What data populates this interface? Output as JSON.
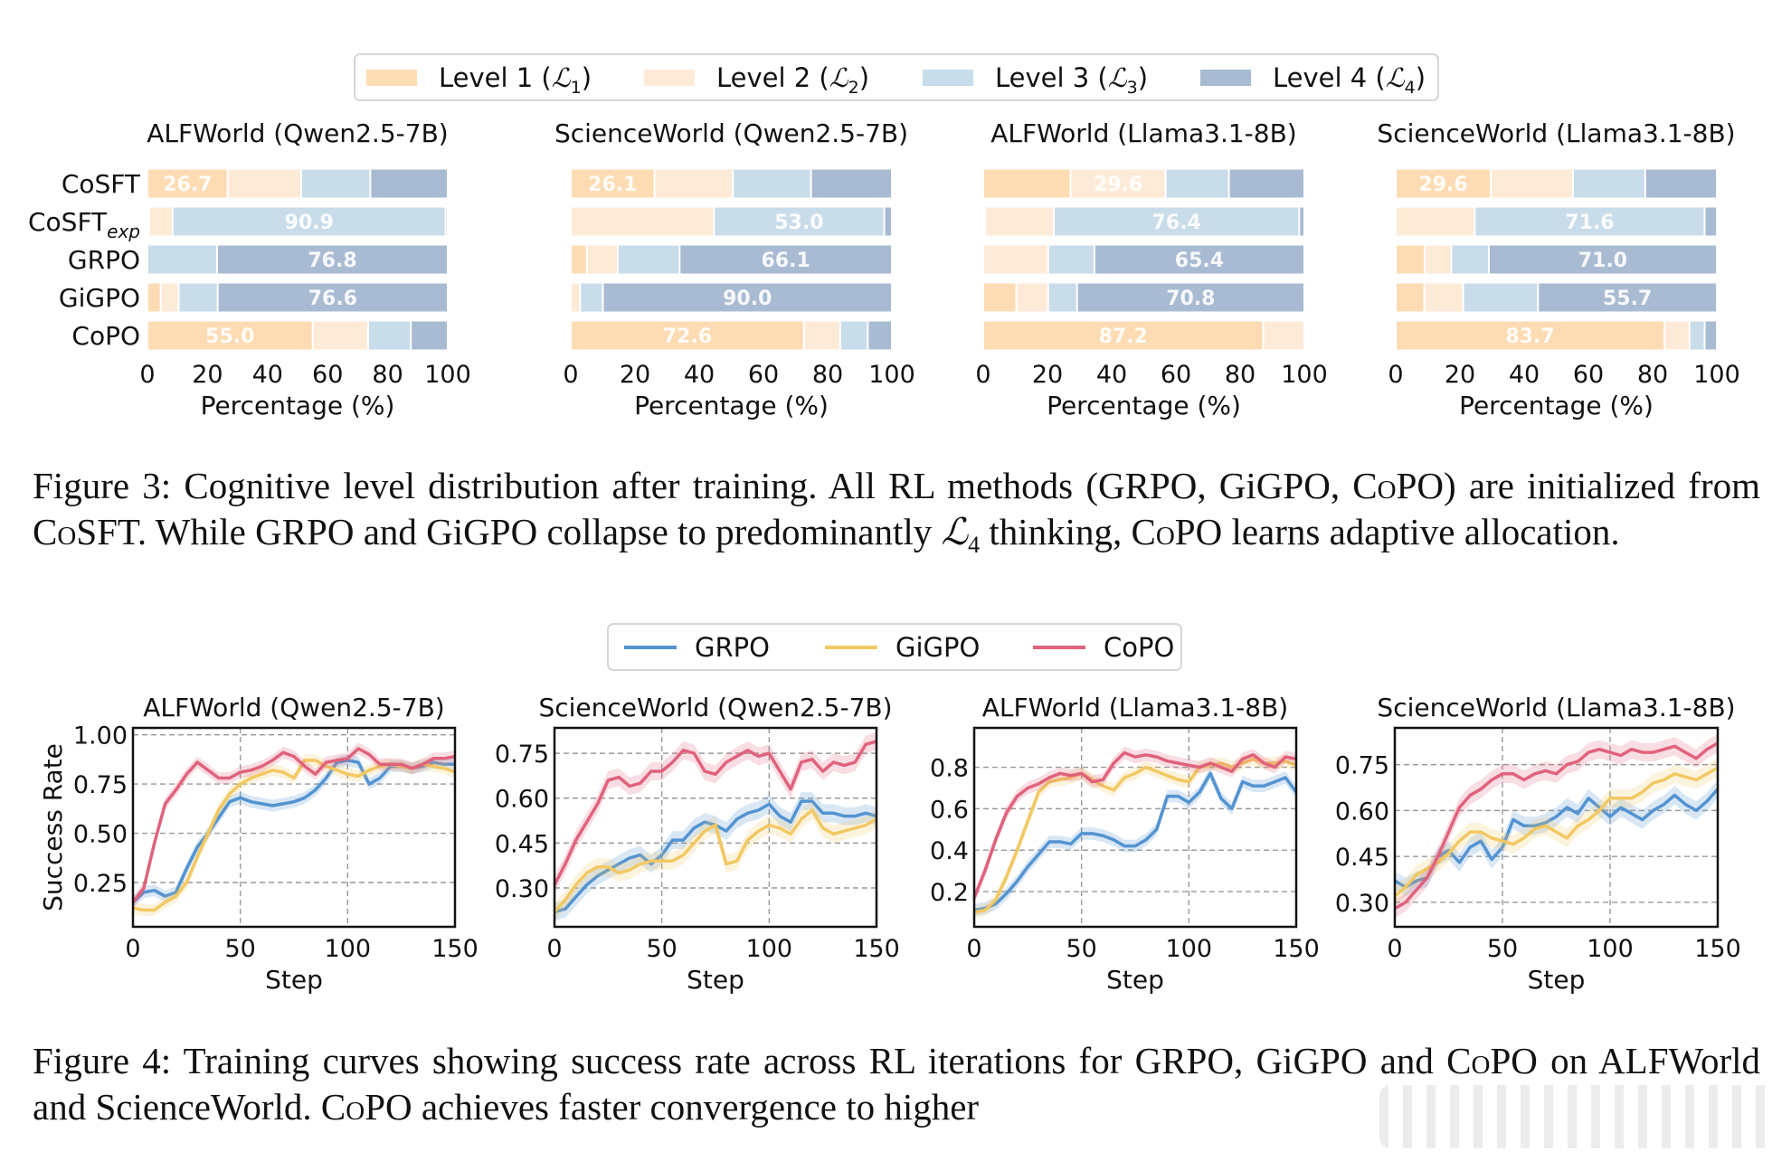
{
  "legend_levels": {
    "items": [
      {
        "label": "Level 1 (",
        "sym": "ℒ",
        "sub": "1",
        "close": ")",
        "color": "#fddcb4"
      },
      {
        "label": "Level 2 (",
        "sym": "ℒ",
        "sub": "2",
        "close": ")",
        "color": "#fdebd8"
      },
      {
        "label": "Level 3 (",
        "sym": "ℒ",
        "sub": "3",
        "close": ")",
        "color": "#c9dcea"
      },
      {
        "label": "Level 4 (",
        "sym": "ℒ",
        "sub": "4",
        "close": ")",
        "color": "#a9bbd3"
      }
    ]
  },
  "legend_methods": {
    "items": [
      {
        "label": "GRPO",
        "color": "#5393d1"
      },
      {
        "label": "GiGPO",
        "color": "#f2c862"
      },
      {
        "label": "CoPO",
        "color": "#e0627c"
      }
    ]
  },
  "captions": {
    "figure3": {
      "prefix": "Figure 3: Cognitive level distribution after training.  All RL methods (GRPO, GiGPO, C",
      "sc1": "o",
      "mid1": "PO) are initialized from C",
      "sc2": "o",
      "mid2": "SFT. While GRPO and GiGPO collapse to predominantly ",
      "sym": "ℒ",
      "sub": "4",
      "mid3": " thinking, C",
      "sc3": "o",
      "suffix": "PO learns adaptive allocation."
    },
    "figure4": {
      "prefix": "Figure 4: Training curves showing success rate across RL iterations for GRPO, GiGPO and C",
      "sc1": "o",
      "mid1": "PO on ALFWorld and ScienceWorld. C",
      "sc2": "o",
      "suffix": "PO achieves faster convergence to higher"
    }
  },
  "chart_data": [
    {
      "type": "bar",
      "stacked": true,
      "orientation": "horizontal",
      "title": "ALFWorld (Qwen2.5-7B)",
      "xlabel": "Percentage (%)",
      "xlim": [
        0,
        100
      ],
      "xticks": [
        "0",
        "20",
        "40",
        "60",
        "80",
        "100"
      ],
      "categories": [
        "CoSFT",
        "CoSFT_exp",
        "GRPO",
        "GiGPO",
        "CoPO"
      ],
      "category_labels": [
        {
          "main": "CoSFT",
          "sub": ""
        },
        {
          "main": "CoSFT",
          "sub": "exp"
        },
        {
          "main": "GRPO",
          "sub": ""
        },
        {
          "main": "GiGPO",
          "sub": ""
        },
        {
          "main": "CoPO",
          "sub": ""
        }
      ],
      "series": [
        {
          "name": "Level 1",
          "values": [
            26.7,
            0.5,
            0.0,
            4.4,
            55.0
          ]
        },
        {
          "name": "Level 2",
          "values": [
            24.5,
            7.9,
            0.0,
            6.0,
            18.5
          ]
        },
        {
          "name": "Level 3",
          "values": [
            23.0,
            90.9,
            23.2,
            13.0,
            14.2
          ]
        },
        {
          "name": "Level 4",
          "values": [
            25.8,
            0.7,
            76.8,
            76.6,
            12.3
          ]
        }
      ],
      "data_labels": [
        "26.7",
        "90.9",
        "76.8",
        "76.6",
        "55.0"
      ]
    },
    {
      "type": "bar",
      "stacked": true,
      "orientation": "horizontal",
      "title": "ScienceWorld (Qwen2.5-7B)",
      "xlabel": "Percentage (%)",
      "xlim": [
        0,
        100
      ],
      "xticks": [
        "0",
        "20",
        "40",
        "60",
        "80",
        "100"
      ],
      "categories": [
        "CoSFT",
        "CoSFT_exp",
        "GRPO",
        "GiGPO",
        "CoPO"
      ],
      "series": [
        {
          "name": "Level 1",
          "values": [
            26.1,
            0.0,
            5.0,
            0.0,
            72.6
          ]
        },
        {
          "name": "Level 2",
          "values": [
            24.4,
            44.6,
            9.6,
            2.9,
            11.3
          ]
        },
        {
          "name": "Level 3",
          "values": [
            24.3,
            53.0,
            19.3,
            7.1,
            8.6
          ]
        },
        {
          "name": "Level 4",
          "values": [
            25.2,
            2.4,
            66.1,
            90.0,
            7.5
          ]
        }
      ],
      "data_labels": [
        "26.1",
        "53.0",
        "66.1",
        "90.0",
        "72.6"
      ]
    },
    {
      "type": "bar",
      "stacked": true,
      "orientation": "horizontal",
      "title": "ALFWorld (Llama3.1-8B)",
      "xlabel": "Percentage (%)",
      "xlim": [
        0,
        100
      ],
      "xticks": [
        "0",
        "20",
        "40",
        "60",
        "80",
        "100"
      ],
      "categories": [
        "CoSFT",
        "CoSFT_exp",
        "GRPO",
        "GiGPO",
        "CoPO"
      ],
      "series": [
        {
          "name": "Level 1",
          "values": [
            27.2,
            0.5,
            0.0,
            10.3,
            87.2
          ]
        },
        {
          "name": "Level 2",
          "values": [
            29.6,
            21.5,
            20.2,
            9.9,
            12.8
          ]
        },
        {
          "name": "Level 3",
          "values": [
            19.7,
            76.4,
            14.4,
            9.0,
            0.0
          ]
        },
        {
          "name": "Level 4",
          "values": [
            23.5,
            1.6,
            65.4,
            70.8,
            0.0
          ]
        }
      ],
      "data_labels": [
        "29.6",
        "76.4",
        "65.4",
        "70.8",
        "87.2"
      ]
    },
    {
      "type": "bar",
      "stacked": true,
      "orientation": "horizontal",
      "title": "ScienceWorld (Llama3.1-8B)",
      "xlabel": "Percentage (%)",
      "xlim": [
        0,
        100
      ],
      "xticks": [
        "0",
        "20",
        "40",
        "60",
        "80",
        "100"
      ],
      "categories": [
        "CoSFT",
        "CoSFT_exp",
        "GRPO",
        "GiGPO",
        "CoPO"
      ],
      "series": [
        {
          "name": "Level 1",
          "values": [
            29.6,
            0.0,
            9.1,
            8.9,
            83.7
          ]
        },
        {
          "name": "Level 2",
          "values": [
            25.6,
            24.6,
            8.2,
            12.1,
            7.8
          ]
        },
        {
          "name": "Level 3",
          "values": [
            22.5,
            71.6,
            11.7,
            23.3,
            4.7
          ]
        },
        {
          "name": "Level 4",
          "values": [
            22.3,
            3.8,
            71.0,
            55.7,
            3.8
          ]
        }
      ],
      "data_labels": [
        "29.6",
        "71.6",
        "71.0",
        "55.7",
        "83.7"
      ]
    },
    {
      "type": "line",
      "title": "ALFWorld (Qwen2.5-7B)",
      "xlabel": "Step",
      "ylabel": "Success Rate",
      "xlim": [
        0,
        150
      ],
      "ylim": [
        0.025,
        1.035
      ],
      "xticks": [
        0,
        50,
        100,
        150
      ],
      "yticks": [
        0.25,
        0.5,
        0.75,
        1.0
      ],
      "ytick_labels": [
        "0.25",
        "0.50",
        "0.75",
        "1.00"
      ],
      "grid": true,
      "x": [
        0,
        5,
        10,
        15,
        20,
        25,
        30,
        35,
        40,
        45,
        50,
        55,
        60,
        65,
        70,
        75,
        80,
        85,
        90,
        95,
        100,
        105,
        110,
        115,
        120,
        125,
        130,
        135,
        140,
        145,
        150
      ],
      "series": [
        {
          "name": "GRPO",
          "values": [
            0.15,
            0.2,
            0.21,
            0.18,
            0.2,
            0.32,
            0.43,
            0.5,
            0.58,
            0.66,
            0.68,
            0.66,
            0.65,
            0.64,
            0.65,
            0.66,
            0.68,
            0.72,
            0.78,
            0.86,
            0.87,
            0.86,
            0.75,
            0.78,
            0.84,
            0.84,
            0.83,
            0.84,
            0.86,
            0.85,
            0.85
          ]
        },
        {
          "name": "GiGPO",
          "values": [
            0.12,
            0.11,
            0.11,
            0.15,
            0.18,
            0.25,
            0.38,
            0.5,
            0.62,
            0.7,
            0.75,
            0.78,
            0.8,
            0.82,
            0.81,
            0.78,
            0.87,
            0.87,
            0.84,
            0.82,
            0.8,
            0.79,
            0.82,
            0.84,
            0.85,
            0.84,
            0.83,
            0.85,
            0.84,
            0.83,
            0.81
          ]
        },
        {
          "name": "CoPO",
          "values": [
            0.15,
            0.22,
            0.45,
            0.65,
            0.72,
            0.8,
            0.86,
            0.82,
            0.78,
            0.78,
            0.81,
            0.82,
            0.84,
            0.87,
            0.91,
            0.89,
            0.84,
            0.8,
            0.86,
            0.87,
            0.88,
            0.93,
            0.9,
            0.85,
            0.85,
            0.85,
            0.83,
            0.85,
            0.88,
            0.88,
            0.89
          ]
        }
      ]
    },
    {
      "type": "line",
      "title": "ScienceWorld (Qwen2.5-7B)",
      "xlabel": "Step",
      "ylabel": "",
      "xlim": [
        0,
        150
      ],
      "ylim": [
        0.17,
        0.835
      ],
      "xticks": [
        0,
        50,
        100,
        150
      ],
      "yticks": [
        0.3,
        0.45,
        0.6,
        0.75
      ],
      "ytick_labels": [
        "0.30",
        "0.45",
        "0.60",
        "0.75"
      ],
      "grid": true,
      "x": [
        0,
        5,
        10,
        15,
        20,
        25,
        30,
        35,
        40,
        45,
        50,
        55,
        60,
        65,
        70,
        75,
        80,
        85,
        90,
        95,
        100,
        105,
        110,
        115,
        120,
        125,
        130,
        135,
        140,
        145,
        150
      ],
      "series": [
        {
          "name": "GRPO",
          "values": [
            0.22,
            0.23,
            0.27,
            0.31,
            0.34,
            0.36,
            0.38,
            0.4,
            0.41,
            0.38,
            0.41,
            0.46,
            0.46,
            0.5,
            0.52,
            0.51,
            0.49,
            0.53,
            0.55,
            0.56,
            0.58,
            0.54,
            0.52,
            0.59,
            0.59,
            0.55,
            0.55,
            0.54,
            0.54,
            0.55,
            0.54
          ]
        },
        {
          "name": "GiGPO",
          "values": [
            0.22,
            0.26,
            0.31,
            0.35,
            0.37,
            0.37,
            0.35,
            0.36,
            0.38,
            0.39,
            0.39,
            0.39,
            0.41,
            0.45,
            0.49,
            0.51,
            0.38,
            0.39,
            0.46,
            0.49,
            0.51,
            0.5,
            0.48,
            0.53,
            0.56,
            0.5,
            0.48,
            0.49,
            0.5,
            0.51,
            0.53
          ]
        },
        {
          "name": "CoPO",
          "values": [
            0.31,
            0.38,
            0.46,
            0.52,
            0.58,
            0.66,
            0.67,
            0.64,
            0.65,
            0.69,
            0.69,
            0.72,
            0.76,
            0.75,
            0.69,
            0.68,
            0.72,
            0.74,
            0.76,
            0.74,
            0.75,
            0.69,
            0.63,
            0.72,
            0.73,
            0.69,
            0.72,
            0.71,
            0.72,
            0.78,
            0.79
          ]
        }
      ]
    },
    {
      "type": "line",
      "title": "ALFWorld (Llama3.1-8B)",
      "xlabel": "Step",
      "ylabel": "",
      "xlim": [
        0,
        150
      ],
      "ylim": [
        0.03,
        0.99
      ],
      "xticks": [
        0,
        50,
        100,
        150
      ],
      "yticks": [
        0.2,
        0.4,
        0.6,
        0.8
      ],
      "ytick_labels": [
        "0.2",
        "0.4",
        "0.6",
        "0.8"
      ],
      "grid": true,
      "x": [
        0,
        5,
        10,
        15,
        20,
        25,
        30,
        35,
        40,
        45,
        50,
        55,
        60,
        65,
        70,
        75,
        80,
        85,
        90,
        95,
        100,
        105,
        110,
        115,
        120,
        125,
        130,
        135,
        140,
        145,
        150
      ],
      "series": [
        {
          "name": "GRPO",
          "values": [
            0.11,
            0.12,
            0.14,
            0.19,
            0.25,
            0.32,
            0.38,
            0.44,
            0.44,
            0.43,
            0.48,
            0.48,
            0.47,
            0.45,
            0.42,
            0.42,
            0.45,
            0.5,
            0.66,
            0.66,
            0.63,
            0.68,
            0.77,
            0.65,
            0.6,
            0.73,
            0.71,
            0.71,
            0.73,
            0.75,
            0.68
          ]
        },
        {
          "name": "GiGPO",
          "values": [
            0.1,
            0.11,
            0.16,
            0.27,
            0.4,
            0.54,
            0.68,
            0.73,
            0.74,
            0.75,
            0.77,
            0.74,
            0.71,
            0.69,
            0.75,
            0.77,
            0.8,
            0.78,
            0.76,
            0.74,
            0.73,
            0.8,
            0.81,
            0.82,
            0.8,
            0.82,
            0.84,
            0.82,
            0.82,
            0.83,
            0.81
          ]
        },
        {
          "name": "CoPO",
          "values": [
            0.17,
            0.3,
            0.45,
            0.58,
            0.66,
            0.7,
            0.72,
            0.75,
            0.77,
            0.76,
            0.77,
            0.73,
            0.74,
            0.82,
            0.87,
            0.85,
            0.86,
            0.85,
            0.83,
            0.82,
            0.81,
            0.8,
            0.82,
            0.8,
            0.78,
            0.84,
            0.86,
            0.82,
            0.8,
            0.85,
            0.84
          ]
        }
      ]
    },
    {
      "type": "line",
      "title": "ScienceWorld (Llama3.1-8B)",
      "xlabel": "Step",
      "ylabel": "",
      "xlim": [
        0,
        150
      ],
      "ylim": [
        0.22,
        0.87
      ],
      "xticks": [
        0,
        50,
        100,
        150
      ],
      "yticks": [
        0.3,
        0.45,
        0.6,
        0.75
      ],
      "ytick_labels": [
        "0.30",
        "0.45",
        "0.60",
        "0.75"
      ],
      "grid": true,
      "x": [
        0,
        5,
        10,
        15,
        20,
        25,
        30,
        35,
        40,
        45,
        50,
        55,
        60,
        65,
        70,
        75,
        80,
        85,
        90,
        95,
        100,
        105,
        110,
        115,
        120,
        125,
        130,
        135,
        140,
        145,
        150
      ],
      "series": [
        {
          "name": "GRPO",
          "values": [
            0.37,
            0.35,
            0.37,
            0.38,
            0.45,
            0.47,
            0.43,
            0.48,
            0.5,
            0.44,
            0.48,
            0.57,
            0.55,
            0.55,
            0.56,
            0.58,
            0.61,
            0.59,
            0.64,
            0.61,
            0.58,
            0.61,
            0.59,
            0.57,
            0.6,
            0.62,
            0.65,
            0.62,
            0.6,
            0.63,
            0.67
          ]
        },
        {
          "name": "GiGPO",
          "values": [
            0.32,
            0.35,
            0.39,
            0.41,
            0.43,
            0.46,
            0.5,
            0.53,
            0.53,
            0.51,
            0.5,
            0.49,
            0.51,
            0.54,
            0.55,
            0.53,
            0.51,
            0.55,
            0.57,
            0.6,
            0.64,
            0.64,
            0.64,
            0.66,
            0.69,
            0.7,
            0.72,
            0.71,
            0.7,
            0.72,
            0.74
          ]
        },
        {
          "name": "CoPO",
          "values": [
            0.28,
            0.3,
            0.34,
            0.38,
            0.45,
            0.53,
            0.61,
            0.65,
            0.67,
            0.7,
            0.72,
            0.72,
            0.7,
            0.72,
            0.73,
            0.72,
            0.75,
            0.76,
            0.79,
            0.8,
            0.79,
            0.78,
            0.8,
            0.79,
            0.79,
            0.8,
            0.81,
            0.79,
            0.77,
            0.8,
            0.82
          ]
        }
      ]
    }
  ]
}
